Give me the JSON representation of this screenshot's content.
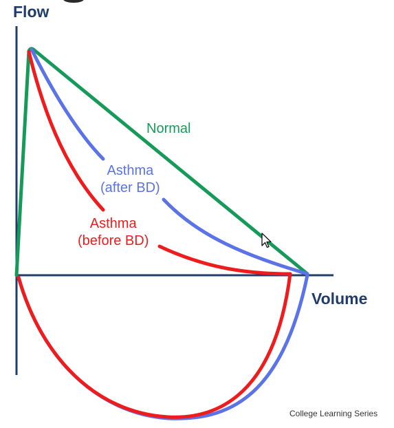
{
  "labels": {
    "y_axis": "Flow",
    "x_axis": "Volume",
    "normal": "Normal",
    "asthma_after": [
      "Asthma",
      "(after BD)"
    ],
    "asthma_before": [
      "Asthma",
      "(before BD)"
    ]
  },
  "footer": {
    "credit": "College Learning Series"
  },
  "colors": {
    "axes": "#1f3d6b",
    "normal": "#169a5a",
    "asthma_after": "#5b73e6",
    "asthma_before": "#ee1c1c"
  },
  "icons": {
    "pointer": "mouse-cursor-icon"
  }
}
